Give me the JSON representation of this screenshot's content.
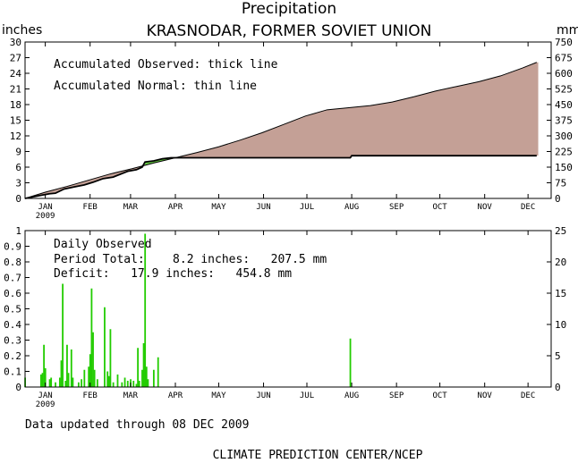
{
  "header": {
    "title": "Precipitation",
    "subtitle": "KRASNODAR, FORMER SOVIET UNION",
    "left_unit": "inches",
    "right_unit": "mm"
  },
  "top_notes": {
    "line1": "Accumulated Observed: thick line",
    "line2": "Accumulated Normal: thin line"
  },
  "bottom_notes": {
    "line1": "Daily Observed",
    "line2": "Period Total:    8.2 inches:   207.5 mm",
    "line3": "Deficit:   17.9 inches:   454.8 mm"
  },
  "footer": {
    "updated": "Data updated through 08 DEC 2009",
    "credit": "CLIMATE PREDICTION CENTER/NCEP"
  },
  "colors": {
    "observed_fill_above": "#66cc44",
    "deficit_fill": "#c4a096",
    "daily_bars": "#22cc00",
    "axis": "#000000"
  },
  "chart_data": [
    {
      "type": "area",
      "title": "Precipitation",
      "subtitle": "KRASNODAR, FORMER SOVIET UNION",
      "xlabel": "",
      "ylabel_left": "inches",
      "ylabel_right": "mm",
      "x_unit": "day of year 2009",
      "xlim": [
        1,
        365
      ],
      "ylim": [
        0,
        30
      ],
      "y_right_lim": [
        0,
        750
      ],
      "y_ticks": [
        0,
        3,
        6,
        9,
        12,
        15,
        18,
        21,
        24,
        27,
        30
      ],
      "y_right_ticks": [
        0,
        75,
        150,
        225,
        300,
        375,
        450,
        525,
        600,
        675,
        750
      ],
      "x_tick_labels": [
        "JAN",
        "FEB",
        "MAR",
        "APR",
        "MAY",
        "JUN",
        "JUL",
        "AUG",
        "SEP",
        "OCT",
        "NOV",
        "DEC"
      ],
      "x_tick_days": [
        15,
        46,
        74,
        105,
        135,
        166,
        196,
        227,
        258,
        288,
        319,
        349
      ],
      "year_label": "2009",
      "series": [
        {
          "name": "Accumulated Normal",
          "x": [
            1,
            15,
            30,
            45,
            60,
            75,
            90,
            105,
            120,
            135,
            150,
            165,
            180,
            195,
            210,
            225,
            240,
            255,
            270,
            285,
            300,
            315,
            330,
            345,
            355
          ],
          "values": [
            0.0,
            1.2,
            2.3,
            3.5,
            4.7,
            5.7,
            6.8,
            7.8,
            8.8,
            9.9,
            11.2,
            12.6,
            14.2,
            15.8,
            17.0,
            17.4,
            17.8,
            18.5,
            19.5,
            20.6,
            21.5,
            22.4,
            23.5,
            25.0,
            26.1
          ]
        },
        {
          "name": "Accumulated Observed",
          "x": [
            1,
            12,
            18,
            22,
            28,
            35,
            42,
            48,
            55,
            62,
            72,
            78,
            82,
            84,
            90,
            96,
            102,
            226,
            227,
            355
          ],
          "values": [
            0.0,
            0.6,
            0.9,
            1.0,
            1.8,
            2.2,
            2.6,
            3.1,
            3.8,
            4.1,
            5.2,
            5.5,
            6.0,
            7.0,
            7.2,
            7.6,
            7.8,
            7.8,
            8.2,
            8.2
          ]
        }
      ]
    },
    {
      "type": "bar",
      "title": "Daily Observed",
      "ylabel_left": "inches",
      "ylabel_right": "mm",
      "xlim": [
        1,
        365
      ],
      "ylim": [
        0,
        1
      ],
      "y_right_lim": [
        0,
        25
      ],
      "y_ticks": [
        0,
        0.1,
        0.2,
        0.3,
        0.4,
        0.5,
        0.6,
        0.7,
        0.8,
        0.9,
        1
      ],
      "y_right_ticks": [
        0,
        5,
        10,
        15,
        20,
        25
      ],
      "period_total_in": 8.2,
      "period_total_mm": 207.5,
      "deficit_in": 17.9,
      "deficit_mm": 454.8,
      "days": [
        1,
        12,
        13,
        14,
        15,
        18,
        19,
        22,
        25,
        26,
        27,
        29,
        30,
        31,
        33,
        34,
        38,
        40,
        42,
        45,
        46,
        47,
        48,
        49,
        51,
        56,
        58,
        59,
        60,
        62,
        65,
        68,
        70,
        72,
        74,
        76,
        78,
        79,
        80,
        82,
        83,
        84,
        85,
        86,
        90,
        93,
        226
      ],
      "values": [
        0.06,
        0.08,
        0.09,
        0.27,
        0.12,
        0.05,
        0.06,
        0.03,
        0.06,
        0.17,
        0.66,
        0.04,
        0.27,
        0.09,
        0.24,
        0.06,
        0.03,
        0.05,
        0.11,
        0.13,
        0.21,
        0.63,
        0.35,
        0.11,
        0.05,
        0.51,
        0.1,
        0.07,
        0.37,
        0.03,
        0.08,
        0.03,
        0.06,
        0.04,
        0.05,
        0.04,
        0.02,
        0.25,
        0.04,
        0.11,
        0.28,
        0.98,
        0.13,
        0.05,
        0.11,
        0.19,
        0.31
      ]
    }
  ]
}
